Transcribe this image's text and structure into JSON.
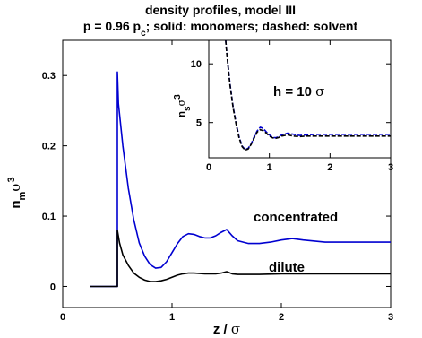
{
  "chart_data": [
    {
      "type": "line",
      "title": "density profiles, model III",
      "subtitle_parts": [
        "p = 0.96 p",
        "c",
        "; solid: monomers; dashed: solvent"
      ],
      "xlabel_parts": [
        "z / ",
        "σ"
      ],
      "ylabel_parts": [
        "n",
        "m",
        "σ",
        "3"
      ],
      "xlim": [
        0,
        3
      ],
      "ylim": [
        -0.03,
        0.35
      ],
      "xticks": [
        0,
        1,
        2,
        3
      ],
      "xtick_labels": [
        "0",
        "1",
        "2",
        "3"
      ],
      "yticks": [
        0,
        0.1,
        0.2,
        0.3
      ],
      "ytick_labels": [
        "0",
        "0.1",
        "0.2",
        "0.3"
      ],
      "grid": false,
      "annotations": [
        "concentrated",
        "dilute"
      ],
      "series": [
        {
          "label": "concentrated",
          "color": "#0000d0",
          "style": "solid",
          "x": [
            0.25,
            0.5,
            0.5,
            0.51,
            0.55,
            0.6,
            0.65,
            0.7,
            0.75,
            0.8,
            0.85,
            0.9,
            0.95,
            1.0,
            1.05,
            1.1,
            1.15,
            1.2,
            1.25,
            1.3,
            1.35,
            1.4,
            1.45,
            1.5,
            1.55,
            1.6,
            1.7,
            1.8,
            1.9,
            2.0,
            2.1,
            2.2,
            2.4,
            2.6,
            2.8,
            3.0
          ],
          "y": [
            0.0,
            0.0,
            0.305,
            0.26,
            0.2,
            0.14,
            0.095,
            0.062,
            0.043,
            0.031,
            0.026,
            0.027,
            0.035,
            0.048,
            0.061,
            0.071,
            0.075,
            0.074,
            0.071,
            0.069,
            0.069,
            0.072,
            0.077,
            0.081,
            0.072,
            0.065,
            0.061,
            0.061,
            0.063,
            0.066,
            0.068,
            0.066,
            0.063,
            0.063,
            0.063,
            0.063
          ]
        },
        {
          "label": "dilute",
          "color": "#000000",
          "style": "solid",
          "x": [
            0.25,
            0.5,
            0.5,
            0.52,
            0.55,
            0.6,
            0.65,
            0.7,
            0.75,
            0.8,
            0.85,
            0.9,
            0.95,
            1.0,
            1.05,
            1.1,
            1.15,
            1.2,
            1.3,
            1.4,
            1.45,
            1.5,
            1.55,
            1.6,
            1.8,
            2.0,
            2.2,
            2.5,
            3.0
          ],
          "y": [
            0.0,
            0.0,
            0.08,
            0.062,
            0.045,
            0.03,
            0.019,
            0.013,
            0.009,
            0.007,
            0.007,
            0.008,
            0.01,
            0.013,
            0.016,
            0.018,
            0.019,
            0.019,
            0.018,
            0.018,
            0.019,
            0.021,
            0.018,
            0.017,
            0.017,
            0.018,
            0.018,
            0.018,
            0.018
          ]
        }
      ]
    },
    {
      "type": "line",
      "title": "",
      "annotation_parts": [
        "h = 10 ",
        "σ"
      ],
      "ylabel_parts": [
        "n",
        "s",
        "σ",
        "3"
      ],
      "xlim": [
        0,
        3
      ],
      "ylim": [
        2.0,
        12.0
      ],
      "xticks": [
        0,
        1,
        2,
        3
      ],
      "xtick_labels": [
        "0",
        "1",
        "2",
        "3"
      ],
      "yticks": [
        5,
        10
      ],
      "ytick_labels": [
        "5",
        "10"
      ],
      "grid": false,
      "series": [
        {
          "label": "concentrated",
          "color": "#0000d0",
          "style": "dashed",
          "x": [
            0.28,
            0.3,
            0.35,
            0.4,
            0.45,
            0.5,
            0.55,
            0.6,
            0.65,
            0.7,
            0.75,
            0.8,
            0.85,
            0.9,
            0.95,
            1.0,
            1.05,
            1.1,
            1.15,
            1.2,
            1.3,
            1.4,
            1.5,
            1.6,
            1.8,
            2.0,
            2.5,
            3.0
          ],
          "y": [
            12.0,
            10.8,
            8.3,
            6.4,
            5.0,
            3.8,
            3.0,
            2.7,
            2.8,
            3.2,
            3.8,
            4.3,
            4.6,
            4.5,
            4.2,
            3.95,
            3.75,
            3.7,
            3.78,
            3.95,
            4.1,
            4.0,
            3.9,
            3.95,
            4.0,
            4.0,
            4.0,
            4.0
          ]
        },
        {
          "label": "dilute",
          "color": "#000000",
          "style": "dashed",
          "x": [
            0.28,
            0.3,
            0.35,
            0.4,
            0.45,
            0.5,
            0.55,
            0.6,
            0.65,
            0.7,
            0.75,
            0.8,
            0.85,
            0.9,
            0.95,
            1.0,
            1.05,
            1.1,
            1.15,
            1.2,
            1.3,
            1.4,
            1.5,
            1.6,
            1.8,
            2.0,
            2.5,
            3.0
          ],
          "y": [
            12.0,
            10.7,
            8.2,
            6.3,
            4.9,
            3.7,
            2.95,
            2.65,
            2.75,
            3.15,
            3.7,
            4.2,
            4.4,
            4.3,
            4.1,
            3.85,
            3.7,
            3.65,
            3.72,
            3.85,
            3.95,
            3.85,
            3.8,
            3.85,
            3.85,
            3.85,
            3.85,
            3.85
          ]
        }
      ]
    }
  ]
}
